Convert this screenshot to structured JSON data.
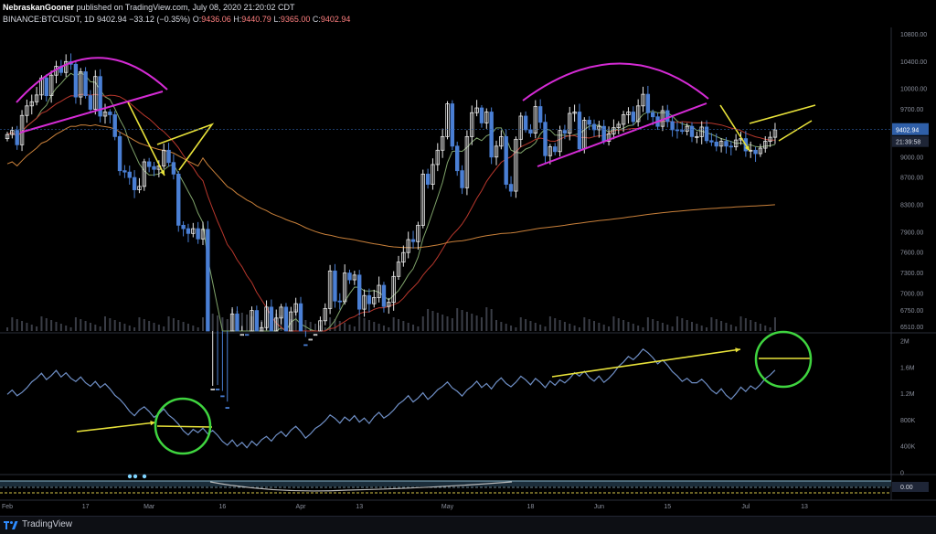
{
  "header": {
    "publisher": "NebraskanGooner",
    "published_text": "published on TradingView.com, July 08, 2020 21:20:02 CDT",
    "symbol": "BINANCE:BTCUSDT, 1D",
    "last": "9402.94",
    "change": "−33.12 (−0.35%)",
    "o_label": "O:",
    "o_value": "9436.06",
    "h_label": "H:",
    "h_value": "9440.79",
    "l_label": "L:",
    "l_value": "9365.00",
    "c_label": "C:",
    "c_value": "9402.94"
  },
  "price_badge": "9402.94",
  "time_badge": "21:39:58",
  "footer": {
    "brand": "TradingView"
  },
  "colors": {
    "up_candle": "#e6e6e6",
    "down_candle": "#4a7fd4",
    "ma_short": "#7fa36a",
    "ma_mid": "#b8372c",
    "ma_long": "#c9803a",
    "obv_line": "#6f8fc6",
    "arc": "#d52bd5",
    "arrow": "#e8e23a",
    "circle": "#3fd43f",
    "badge": "#2f5fa8"
  },
  "chart_data": [
    {
      "type": "candlestick",
      "title": "BINANCE:BTCUSDT, 1D",
      "ylim": [
        6450,
        10900
      ],
      "y_ticks": [
        6510,
        6750,
        7000,
        7300,
        7600,
        7900,
        8300,
        8700,
        9000,
        9700,
        10000,
        10400,
        10800
      ],
      "x_ticks": [
        "Feb",
        "17",
        "Mar",
        "16",
        "Apr",
        "13",
        "May",
        "18",
        "Jun",
        "15",
        "Jul",
        "13"
      ],
      "x_tick_day_index": [
        0,
        16,
        29,
        44,
        60,
        72,
        90,
        107,
        121,
        135,
        151,
        163
      ],
      "close": [
        9330,
        9390,
        9180,
        9610,
        9750,
        9810,
        9910,
        10160,
        9900,
        10200,
        10330,
        10240,
        10400,
        10360,
        9880,
        10250,
        9900,
        9700,
        10180,
        9600,
        9660,
        9620,
        9300,
        8800,
        8780,
        8700,
        8520,
        8570,
        8930,
        8860,
        8820,
        8870,
        9100,
        8920,
        8750,
        8000,
        7950,
        7880,
        7950,
        7800,
        7940,
        5000,
        5600,
        5500,
        5330,
        5100,
        6700,
        5800,
        6400,
        6200,
        6750,
        5840,
        6500,
        6800,
        6150,
        6640,
        6800,
        6430,
        6730,
        6850,
        6250,
        5900,
        6330,
        6400,
        6600,
        6780,
        7330,
        6890,
        6880,
        7300,
        7200,
        7270,
        6770,
        6970,
        6850,
        6940,
        7120,
        6810,
        6870,
        7250,
        7460,
        7600,
        7790,
        7760,
        8000,
        8750,
        8600,
        8890,
        9100,
        9300,
        9780,
        9160,
        8800,
        8550,
        9300,
        9650,
        9720,
        9500,
        9660,
        9000,
        9160,
        9300,
        8600,
        8500,
        9260,
        9600,
        9400,
        9350,
        9740,
        9510,
        9020,
        9150,
        9080,
        9390,
        9350,
        9640,
        9660,
        9120,
        9540,
        9480,
        9400,
        9450,
        9230,
        9340,
        9430,
        9480,
        9620,
        9660,
        9520,
        9750,
        9920,
        9650,
        9590,
        9450,
        9680,
        9520,
        9400,
        9390,
        9380,
        9450,
        9300,
        9300,
        9440,
        9240,
        9220,
        9160,
        9230,
        9160,
        9150,
        9250,
        9270,
        9090,
        9100,
        9050,
        9130,
        9230,
        9290,
        9400
      ],
      "obv_ylim": [
        0,
        2100000
      ],
      "obv_y_ticks_labels": [
        "0",
        "400K",
        "800K",
        "1.2M",
        "1.6M",
        "2M"
      ],
      "obv_y_ticks": [
        0,
        400000,
        800000,
        1200000,
        1600000,
        2000000
      ],
      "osc_y_tick_label": "0.00"
    }
  ]
}
